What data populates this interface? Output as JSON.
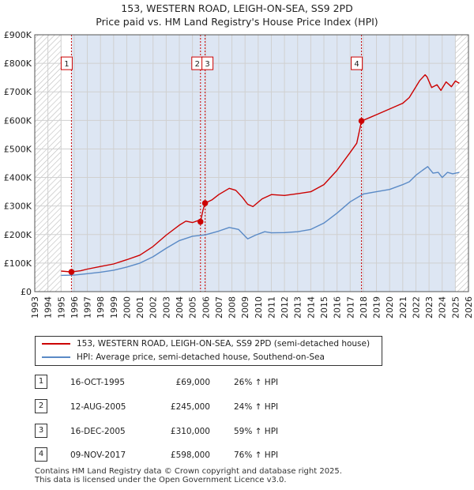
{
  "title_line1": "153, WESTERN ROAD, LEIGH-ON-SEA, SS9 2PD",
  "title_line2": "Price paid vs. HM Land Registry's House Price Index (HPI)",
  "colors": {
    "property": "#cc0000",
    "hpi": "#5a8ac6",
    "shade": "#dde6f3",
    "hatch": "#bbbbbb",
    "grid": "#d0d0d0"
  },
  "chart_data": {
    "type": "line",
    "title": "153, WESTERN ROAD, LEIGH-ON-SEA, SS9 2PD — Price paid vs. HM Land Registry's House Price Index (HPI)",
    "xlim": [
      1993,
      2026
    ],
    "ylim": [
      0,
      900000
    ],
    "y_ticks": [
      {
        "value": 0,
        "label": "£0"
      },
      {
        "value": 100000,
        "label": "£100K"
      },
      {
        "value": 200000,
        "label": "£200K"
      },
      {
        "value": 300000,
        "label": "£300K"
      },
      {
        "value": 400000,
        "label": "£400K"
      },
      {
        "value": 500000,
        "label": "£500K"
      },
      {
        "value": 600000,
        "label": "£600K"
      },
      {
        "value": 700000,
        "label": "£700K"
      },
      {
        "value": 800000,
        "label": "£800K"
      },
      {
        "value": 900000,
        "label": "£900K"
      }
    ],
    "x_ticks": [
      "1993",
      "1994",
      "1995",
      "1996",
      "1997",
      "1998",
      "1999",
      "2000",
      "2001",
      "2002",
      "2003",
      "2004",
      "2005",
      "2006",
      "2007",
      "2008",
      "2009",
      "2010",
      "2011",
      "2012",
      "2013",
      "2014",
      "2015",
      "2016",
      "2017",
      "2018",
      "2019",
      "2020",
      "2021",
      "2022",
      "2023",
      "2024",
      "2025",
      "2026"
    ],
    "shaded_region": [
      1995.79,
      2025.0
    ],
    "series": [
      {
        "name": "153, WESTERN ROAD, LEIGH-ON-SEA, SS9 2PD (semi-detached house)",
        "x": [
          1995.0,
          1995.79,
          1996.5,
          1997.0,
          1998.0,
          1999.0,
          2000.0,
          2001.0,
          2002.0,
          2003.0,
          2004.0,
          2004.5,
          2005.0,
          2005.5,
          2005.61,
          2005.8,
          2005.96,
          2006.5,
          2007.0,
          2007.8,
          2008.3,
          2008.8,
          2009.2,
          2009.6,
          2010.3,
          2011.0,
          2012.0,
          2013.0,
          2014.0,
          2015.0,
          2016.0,
          2017.0,
          2017.5,
          2017.86,
          2018.5,
          2019.0,
          2020.0,
          2021.0,
          2021.5,
          2022.0,
          2022.3,
          2022.7,
          2022.85,
          2023.2,
          2023.6,
          2023.9,
          2024.3,
          2024.7,
          2025.0,
          2025.3
        ],
        "y": [
          72000,
          69000,
          73000,
          79000,
          88000,
          97000,
          112000,
          128000,
          158000,
          198000,
          233000,
          247000,
          242000,
          250000,
          245000,
          285000,
          310000,
          322000,
          340000,
          362000,
          355000,
          330000,
          306000,
          298000,
          325000,
          340000,
          337000,
          343000,
          350000,
          375000,
          425000,
          488000,
          520000,
          598000,
          610000,
          620000,
          640000,
          660000,
          680000,
          718000,
          740000,
          760000,
          752000,
          715000,
          725000,
          705000,
          735000,
          718000,
          738000,
          730000
        ]
      },
      {
        "name": "HPI: Average price, semi-detached house, Southend-on-Sea",
        "x": [
          1995.0,
          1996.0,
          1997.0,
          1998.0,
          1999.0,
          2000.0,
          2001.0,
          2002.0,
          2003.0,
          2004.0,
          2005.0,
          2006.0,
          2007.0,
          2007.8,
          2008.5,
          2009.2,
          2009.8,
          2010.5,
          2011.0,
          2012.0,
          2013.0,
          2014.0,
          2015.0,
          2016.0,
          2017.0,
          2018.0,
          2019.0,
          2020.0,
          2021.0,
          2021.5,
          2022.0,
          2022.5,
          2022.9,
          2023.3,
          2023.7,
          2024.0,
          2024.4,
          2024.8,
          2025.3
        ],
        "y": [
          57000,
          58000,
          63000,
          68000,
          75000,
          86000,
          100000,
          122000,
          152000,
          179000,
          194000,
          199000,
          212000,
          225000,
          218000,
          185000,
          198000,
          210000,
          206000,
          207000,
          210000,
          218000,
          240000,
          275000,
          315000,
          342000,
          350000,
          358000,
          375000,
          385000,
          408000,
          425000,
          438000,
          415000,
          418000,
          400000,
          418000,
          413000,
          418000
        ]
      }
    ],
    "transactions": [
      {
        "label": "1",
        "date": "16-OCT-1995",
        "price": "£69,000",
        "hpi": "26% ↑ HPI",
        "x": 1995.79,
        "value": 69000
      },
      {
        "label": "2",
        "date": "12-AUG-2005",
        "price": "£245,000",
        "hpi": "24% ↑ HPI",
        "x": 2005.61,
        "value": 245000
      },
      {
        "label": "3",
        "date": "16-DEC-2005",
        "price": "£310,000",
        "hpi": "59% ↑ HPI",
        "x": 2005.96,
        "value": 310000
      },
      {
        "label": "4",
        "date": "09-NOV-2017",
        "price": "£598,000",
        "hpi": "76% ↑ HPI",
        "x": 2017.86,
        "value": 598000
      }
    ]
  },
  "legend": {
    "property": "153, WESTERN ROAD, LEIGH-ON-SEA, SS9 2PD (semi-detached house)",
    "hpi": "HPI: Average price, semi-detached house, Southend-on-Sea"
  },
  "footer_line1": "Contains HM Land Registry data © Crown copyright and database right 2025.",
  "footer_line2": "This data is licensed under the Open Government Licence v3.0."
}
